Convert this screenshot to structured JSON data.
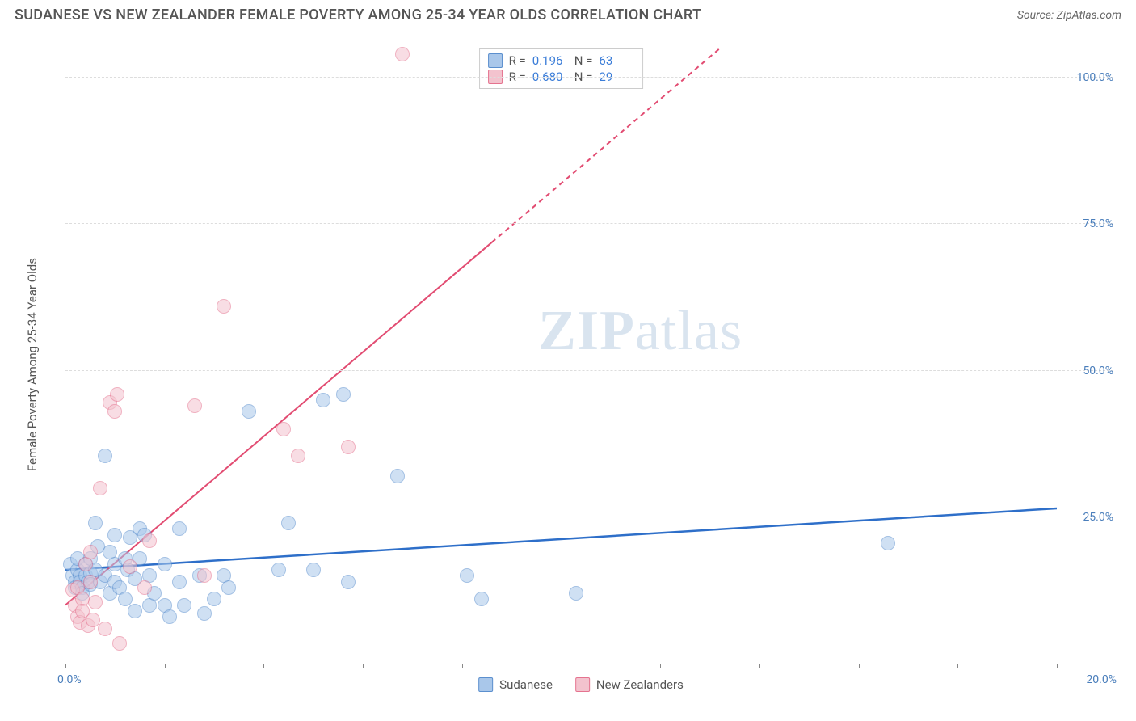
{
  "header": {
    "title": "SUDANESE VS NEW ZEALANDER FEMALE POVERTY AMONG 25-34 YEAR OLDS CORRELATION CHART",
    "source_label": "Source:",
    "source_name": "ZipAtlas.com"
  },
  "watermark": {
    "zip": "ZIP",
    "atlas": "atlas"
  },
  "chart": {
    "type": "scatter",
    "y_axis_title": "Female Poverty Among 25-34 Year Olds",
    "xlim": [
      0,
      20
    ],
    "ylim": [
      0,
      105
    ],
    "x_ticks": [
      0,
      2,
      4,
      6,
      8,
      10,
      12,
      14,
      16,
      18,
      20
    ],
    "y_gridlines": [
      25,
      50,
      75,
      100
    ],
    "x_label_start": "0.0%",
    "x_label_end": "20.0%",
    "y_labels": [
      "25.0%",
      "50.0%",
      "75.0%",
      "100.0%"
    ],
    "background_color": "#ffffff",
    "grid_color": "#dddddd",
    "axis_color": "#888888",
    "label_color": "#4a7ebb",
    "point_radius": 9,
    "point_opacity": 0.55,
    "series": [
      {
        "key": "sudanese",
        "name": "Sudanese",
        "fill": "#a9c7ea",
        "stroke": "#5b8fce",
        "trend_color": "#2e6fc9",
        "trend_width": 2.5,
        "trend": {
          "x1": 0,
          "y1": 16,
          "x2": 20,
          "y2": 26.5,
          "dash_from_x": null
        },
        "R": "0.196",
        "N": "63",
        "points": [
          [
            0.1,
            17
          ],
          [
            0.15,
            15
          ],
          [
            0.2,
            14
          ],
          [
            0.2,
            13
          ],
          [
            0.25,
            16
          ],
          [
            0.25,
            18
          ],
          [
            0.3,
            15
          ],
          [
            0.3,
            14
          ],
          [
            0.35,
            13
          ],
          [
            0.35,
            12
          ],
          [
            0.4,
            15
          ],
          [
            0.4,
            17
          ],
          [
            0.45,
            14
          ],
          [
            0.5,
            15.5
          ],
          [
            0.5,
            13.5
          ],
          [
            0.5,
            18
          ],
          [
            0.6,
            24
          ],
          [
            0.6,
            16
          ],
          [
            0.65,
            20
          ],
          [
            0.7,
            14
          ],
          [
            0.8,
            35.5
          ],
          [
            0.8,
            15
          ],
          [
            0.9,
            19
          ],
          [
            0.9,
            12
          ],
          [
            1.0,
            17
          ],
          [
            1.0,
            22
          ],
          [
            1.0,
            14
          ],
          [
            1.1,
            13
          ],
          [
            1.2,
            18
          ],
          [
            1.2,
            11
          ],
          [
            1.25,
            16
          ],
          [
            1.3,
            21.5
          ],
          [
            1.4,
            14.5
          ],
          [
            1.4,
            9
          ],
          [
            1.5,
            18
          ],
          [
            1.5,
            23
          ],
          [
            1.6,
            22
          ],
          [
            1.7,
            15
          ],
          [
            1.7,
            10
          ],
          [
            1.8,
            12
          ],
          [
            2.0,
            10
          ],
          [
            2.0,
            17
          ],
          [
            2.1,
            8
          ],
          [
            2.3,
            14
          ],
          [
            2.3,
            23
          ],
          [
            2.4,
            10
          ],
          [
            2.7,
            15
          ],
          [
            2.8,
            8.5
          ],
          [
            3.0,
            11
          ],
          [
            3.2,
            15
          ],
          [
            3.3,
            13
          ],
          [
            3.7,
            43
          ],
          [
            4.3,
            16
          ],
          [
            4.5,
            24
          ],
          [
            5.0,
            16
          ],
          [
            5.2,
            45
          ],
          [
            5.6,
            46
          ],
          [
            5.7,
            14
          ],
          [
            6.7,
            32
          ],
          [
            8.1,
            15
          ],
          [
            8.4,
            11
          ],
          [
            10.3,
            12
          ],
          [
            16.6,
            20.5
          ]
        ]
      },
      {
        "key": "newzealanders",
        "name": "New Zealanders",
        "fill": "#f3c3ce",
        "stroke": "#e5738f",
        "trend_color": "#e24c72",
        "trend_width": 2,
        "trend": {
          "x1": 0,
          "y1": 10,
          "x2": 13.2,
          "y2": 105,
          "dash_from_x": 8.6
        },
        "R": "0.680",
        "N": "29",
        "points": [
          [
            0.15,
            12.5
          ],
          [
            0.2,
            10
          ],
          [
            0.25,
            13
          ],
          [
            0.25,
            8
          ],
          [
            0.3,
            7
          ],
          [
            0.35,
            11
          ],
          [
            0.35,
            9
          ],
          [
            0.4,
            17
          ],
          [
            0.45,
            6.5
          ],
          [
            0.5,
            14
          ],
          [
            0.5,
            19
          ],
          [
            0.55,
            7.5
          ],
          [
            0.6,
            10.5
          ],
          [
            0.7,
            30
          ],
          [
            0.8,
            6
          ],
          [
            0.9,
            44.5
          ],
          [
            1.0,
            43
          ],
          [
            1.05,
            46
          ],
          [
            1.1,
            3.5
          ],
          [
            1.3,
            16.5
          ],
          [
            1.6,
            13
          ],
          [
            1.7,
            21
          ],
          [
            2.6,
            44
          ],
          [
            2.8,
            15
          ],
          [
            3.2,
            61
          ],
          [
            4.4,
            40
          ],
          [
            4.7,
            35.5
          ],
          [
            5.7,
            37
          ],
          [
            6.8,
            104
          ]
        ]
      }
    ],
    "stats_box": {
      "rows": [
        {
          "swatch_fill": "#a9c7ea",
          "swatch_stroke": "#5b8fce",
          "R_label": "R =",
          "R": "0.196",
          "N_label": "N =",
          "N": "63"
        },
        {
          "swatch_fill": "#f3c3ce",
          "swatch_stroke": "#e5738f",
          "R_label": "R =",
          "R": "0.680",
          "N_label": "N =",
          "N": "29"
        }
      ]
    },
    "bottom_legend": [
      {
        "swatch_fill": "#a9c7ea",
        "swatch_stroke": "#5b8fce",
        "label": "Sudanese"
      },
      {
        "swatch_fill": "#f3c3ce",
        "swatch_stroke": "#e5738f",
        "label": "New Zealanders"
      }
    ]
  }
}
